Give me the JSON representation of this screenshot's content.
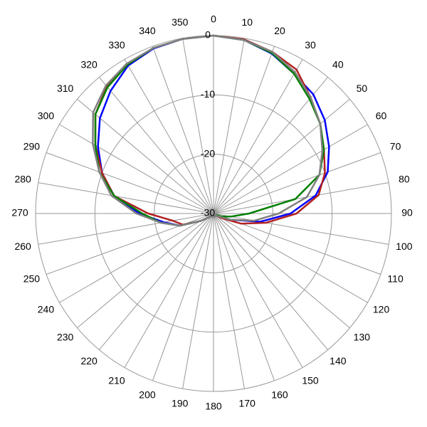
{
  "chart_data": {
    "type": "polar",
    "x": [
      0,
      10,
      20,
      30,
      40,
      50,
      60,
      70,
      80,
      90,
      100,
      110,
      120,
      130,
      140,
      150,
      160,
      170,
      180,
      190,
      200,
      210,
      220,
      230,
      240,
      250,
      260,
      270,
      280,
      290,
      300,
      310,
      320,
      330,
      340,
      350
    ],
    "rlim": [
      -30,
      0
    ],
    "rticks": [
      -30,
      -20,
      -10,
      0
    ],
    "grid": true,
    "series": [
      {
        "color": "#0000ff",
        "values": [
          0,
          -0.3,
          -1.3,
          -2.8,
          -3.8,
          -5.5,
          -7.5,
          -9.5,
          -12.5,
          -17,
          -22,
          -27,
          -29,
          -29.5,
          -29.5,
          -29.5,
          -29.5,
          -29.5,
          -29.5,
          -29.5,
          -29.5,
          -29.5,
          -29.5,
          -29,
          -27.5,
          -24,
          -21.5,
          -17.5,
          -13,
          -10,
          -7.5,
          -5,
          -3,
          -1.2,
          -0.4,
          -0.1
        ]
      },
      {
        "color": "#b22222",
        "values": [
          0,
          -0.2,
          -1,
          -2,
          -4.5,
          -6.5,
          -8.5,
          -10,
          -12,
          -16,
          -21,
          -25,
          -28.5,
          -29.5,
          -29.5,
          -29.5,
          -29.5,
          -29.5,
          -29.5,
          -29.5,
          -29.5,
          -29.5,
          -29.5,
          -29,
          -27.5,
          -24.5,
          -23,
          -19,
          -13,
          -10,
          -7,
          -4,
          -2,
          -1,
          -0.3,
          -0.1
        ]
      },
      {
        "color": "#008000",
        "values": [
          0,
          -0.3,
          -1.2,
          -2.8,
          -4.8,
          -6.5,
          -8.5,
          -11,
          -16,
          -24,
          -27,
          -28.5,
          -29.5,
          -29.5,
          -29.5,
          -29.5,
          -29.5,
          -29.5,
          -29.5,
          -29.5,
          -29.5,
          -29.5,
          -29.5,
          -29,
          -27.5,
          -24,
          -21,
          -18,
          -13,
          -9.5,
          -7,
          -4,
          -2.2,
          -1,
          -0.3,
          -0.1
        ]
      },
      {
        "color": "#808080",
        "values": [
          0,
          -0.3,
          -1,
          -2.5,
          -4.5,
          -6.5,
          -8.8,
          -11,
          -14,
          -19,
          -23,
          -27,
          -29,
          -29.5,
          -29.5,
          -29.5,
          -29.5,
          -29.5,
          -29.5,
          -29.5,
          -29.5,
          -29.5,
          -29.5,
          -29,
          -27.5,
          -24,
          -21,
          -17,
          -12.5,
          -9.5,
          -6.5,
          -3.5,
          -1.8,
          -0.8,
          -0.3,
          -0.1
        ]
      }
    ]
  }
}
